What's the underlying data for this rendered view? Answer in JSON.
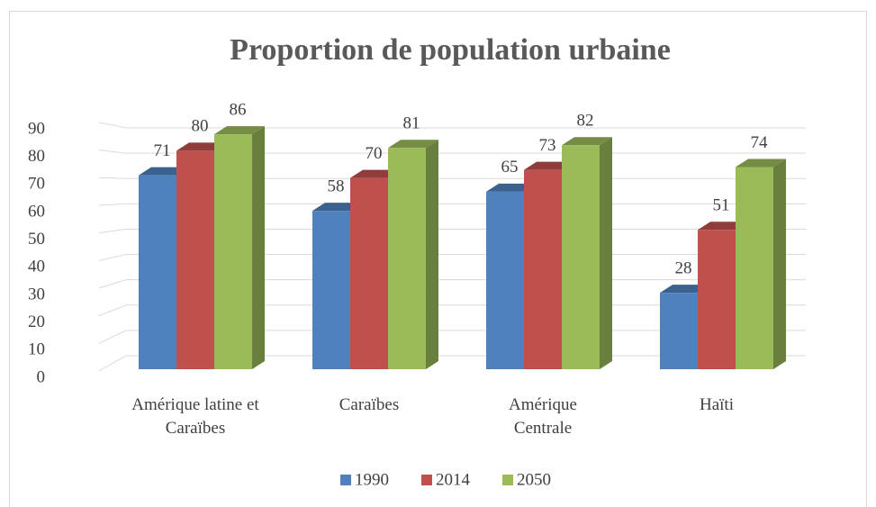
{
  "chart_data": {
    "type": "bar3d",
    "title": "Proportion de population urbaine",
    "categories": [
      "Amérique latine et Caraïbes",
      "Caraïbes",
      "Amérique Centrale",
      "Haïti"
    ],
    "series": [
      {
        "name": "1990",
        "color": "#4f81bd",
        "values": [
          71,
          58,
          65,
          28
        ]
      },
      {
        "name": "2014",
        "color": "#c0504d",
        "values": [
          80,
          70,
          73,
          51
        ]
      },
      {
        "name": "2050",
        "color": "#9bbb59",
        "values": [
          86,
          81,
          82,
          74
        ]
      }
    ],
    "ylim": [
      0,
      90
    ],
    "yticks": [
      0,
      10,
      20,
      30,
      40,
      50,
      60,
      70,
      80,
      90
    ],
    "grid": true,
    "legend": "bottom"
  }
}
